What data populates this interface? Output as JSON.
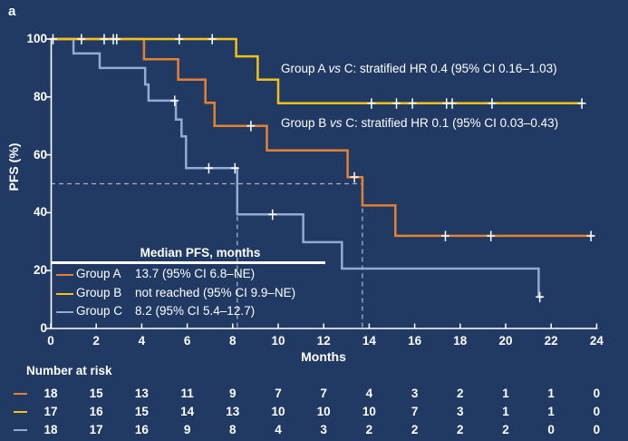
{
  "panel_label": "a",
  "colors": {
    "background": "#213a63",
    "axis": "#ffffff",
    "text": "#ffffff",
    "dashed": "#a9b3c0",
    "group_a": "#e5812f",
    "group_b": "#f3c117",
    "group_c": "#93aad4"
  },
  "annotations": [
    {
      "pre": "Group A ",
      "vs": "vs",
      "post": " C: stratified HR 0.4 (95% CI 0.16–1.03)"
    },
    {
      "pre": "Group B ",
      "vs": "vs",
      "post": " C: stratified HR 0.1 (95% CI 0.03–0.43)"
    }
  ],
  "axes": {
    "y": {
      "title": "PFS (%)",
      "ticks": [
        0,
        20,
        40,
        60,
        80,
        100
      ],
      "min": 0,
      "max": 100
    },
    "x": {
      "title": "Months",
      "ticks": [
        0,
        2,
        4,
        6,
        8,
        10,
        12,
        14,
        16,
        18,
        20,
        22,
        24
      ],
      "min": 0,
      "max": 24
    }
  },
  "chart_data": {
    "type": "line",
    "subtype": "kaplan-meier-step",
    "title": "",
    "xlabel": "Months",
    "ylabel": "PFS (%)",
    "xlim": [
      0,
      24
    ],
    "ylim": [
      0,
      100
    ],
    "grid": false,
    "series": [
      {
        "name": "Group A",
        "color": "#e5812f",
        "steps": [
          [
            0,
            100
          ],
          [
            4.1,
            100
          ],
          [
            4.1,
            93
          ],
          [
            5.6,
            93
          ],
          [
            5.6,
            86
          ],
          [
            6.8,
            86
          ],
          [
            6.8,
            78
          ],
          [
            7.2,
            78
          ],
          [
            7.2,
            70
          ],
          [
            9.5,
            70
          ],
          [
            9.5,
            61.5
          ],
          [
            13.05,
            61.5
          ],
          [
            13.05,
            52.3
          ],
          [
            13.7,
            52.3
          ],
          [
            13.7,
            42.5
          ],
          [
            15.15,
            42.5
          ],
          [
            15.15,
            32
          ],
          [
            23.85,
            32
          ]
        ],
        "censors": [
          [
            8.8,
            70
          ],
          [
            13.35,
            52.3
          ],
          [
            17.35,
            32
          ],
          [
            19.35,
            32
          ],
          [
            23.75,
            32
          ]
        ],
        "median_months": 13.7
      },
      {
        "name": "Group B",
        "color": "#f3c117",
        "steps": [
          [
            0,
            100
          ],
          [
            8.15,
            100
          ],
          [
            8.15,
            94
          ],
          [
            9.1,
            94
          ],
          [
            9.1,
            86
          ],
          [
            10,
            86
          ],
          [
            10,
            77.8
          ],
          [
            23.4,
            77.8
          ]
        ],
        "censors": [
          [
            0.1,
            100
          ],
          [
            1.35,
            100
          ],
          [
            2.35,
            100
          ],
          [
            2.75,
            100
          ],
          [
            2.9,
            100
          ],
          [
            5.65,
            100
          ],
          [
            7.1,
            100
          ],
          [
            14.1,
            77.8
          ],
          [
            15.2,
            77.8
          ],
          [
            15.9,
            77.8
          ],
          [
            17.4,
            77.8
          ],
          [
            17.65,
            77.8
          ],
          [
            19.4,
            77.8
          ],
          [
            23.35,
            77.8
          ]
        ],
        "median_months": null
      },
      {
        "name": "Group C",
        "color": "#93aad4",
        "steps": [
          [
            0,
            100
          ],
          [
            1,
            100
          ],
          [
            1,
            95
          ],
          [
            2.15,
            95
          ],
          [
            2.15,
            90
          ],
          [
            4.15,
            90
          ],
          [
            4.15,
            84.3
          ],
          [
            4.3,
            84.3
          ],
          [
            4.3,
            78.7
          ],
          [
            5.5,
            78.7
          ],
          [
            5.5,
            72.2
          ],
          [
            5.75,
            72.2
          ],
          [
            5.75,
            66.4
          ],
          [
            5.95,
            66.4
          ],
          [
            5.95,
            55.4
          ],
          [
            8.2,
            55.4
          ],
          [
            8.2,
            39.4
          ],
          [
            11.1,
            39.4
          ],
          [
            11.1,
            29.8
          ],
          [
            12.8,
            29.8
          ],
          [
            12.8,
            20.7
          ],
          [
            21.45,
            20.7
          ],
          [
            21.45,
            10.9
          ],
          [
            21.6,
            10.9
          ]
        ],
        "censors": [
          [
            5.45,
            78.7
          ],
          [
            6.95,
            55.4
          ],
          [
            8.1,
            55.4
          ],
          [
            9.75,
            39.4
          ],
          [
            21.5,
            10.9
          ]
        ],
        "median_months": 8.2
      }
    ],
    "reference_lines": {
      "horizontal_pct": 50,
      "horizontal_month_end": 13.7,
      "vertical_months": [
        8.2,
        13.7
      ]
    },
    "draw_order": [
      0,
      2,
      1
    ],
    "legend_position": "lower-left-inside"
  },
  "legend": {
    "header": "Median PFS, months",
    "rows": [
      {
        "group": "Group A",
        "value": "13.7 (95% CI 6.8–NE)"
      },
      {
        "group": "Group B",
        "value": "not reached (95% CI 9.9–NE)"
      },
      {
        "group": "Group C",
        "value": "8.2 (95% CI 5.4–12.7)"
      }
    ]
  },
  "risk_table": {
    "title": "Number at risk",
    "months": [
      0,
      2,
      4,
      6,
      8,
      10,
      12,
      14,
      16,
      18,
      20,
      22,
      24
    ],
    "rows": [
      {
        "group": "Group A",
        "values": [
          18,
          15,
          13,
          11,
          9,
          7,
          7,
          4,
          3,
          2,
          1,
          1,
          0
        ]
      },
      {
        "group": "Group B",
        "values": [
          17,
          16,
          15,
          14,
          13,
          10,
          10,
          10,
          7,
          3,
          1,
          1,
          0
        ]
      },
      {
        "group": "Group C",
        "values": [
          18,
          17,
          16,
          9,
          8,
          4,
          3,
          2,
          2,
          2,
          2,
          0,
          0
        ]
      }
    ]
  }
}
